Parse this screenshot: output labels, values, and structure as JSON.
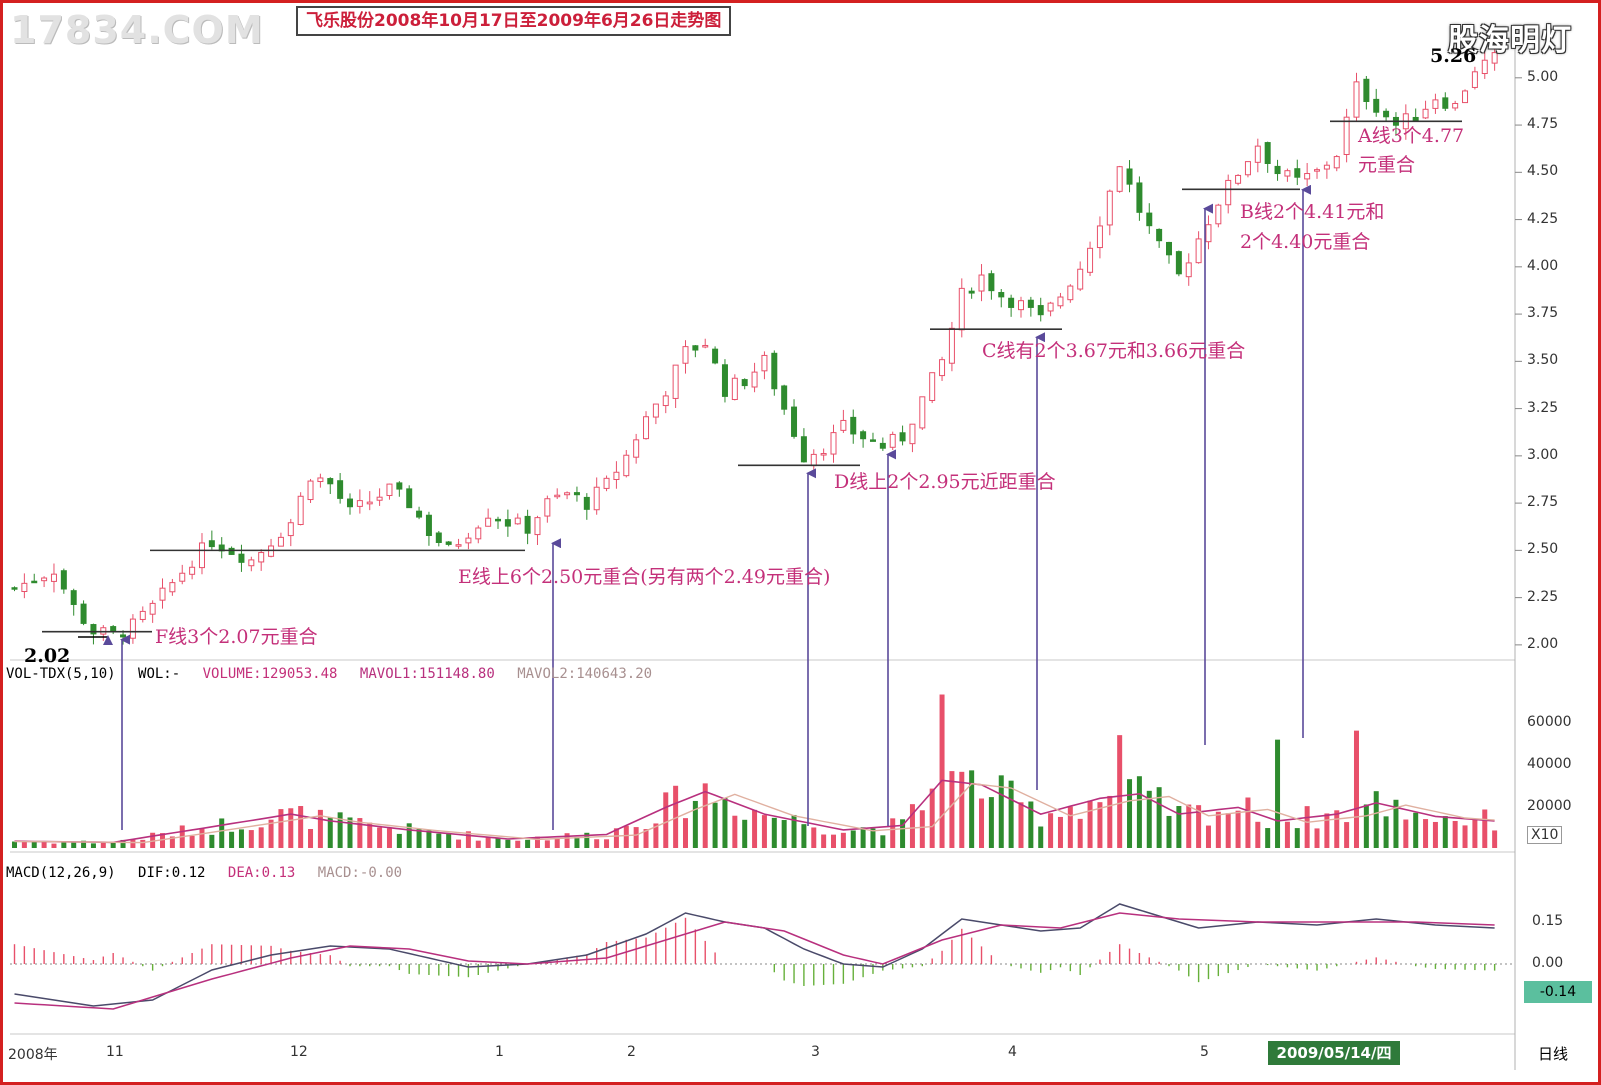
{
  "header": {
    "watermark": "17834.COM",
    "title": "飞乐股份2008年10月17日至2009年6月26日走势图",
    "logo": "股海明灯"
  },
  "price_axis": {
    "ticks": [
      "5.00",
      "4.75",
      "4.50",
      "4.25",
      "4.00",
      "3.75",
      "3.50",
      "3.25",
      "3.00",
      "2.75",
      "2.50",
      "2.25",
      "2.00"
    ]
  },
  "volume_axis": {
    "ticks": [
      "60000",
      "40000",
      "20000"
    ],
    "unit": "X10"
  },
  "macd_axis": {
    "ticks": [
      "0.15",
      "0.00"
    ],
    "current": "-0.14"
  },
  "volume_indicator": {
    "name": "VOL-TDX(5,10)",
    "sub": "WOL:-",
    "volume": "VOLUME:129053.48",
    "mavol1": "MAVOL1:151148.80",
    "mavol2": "MAVOL2:140643.20"
  },
  "macd_indicator": {
    "name": "MACD(12,26,9)",
    "dif": "DIF:0.12",
    "dea": "DEA:0.13",
    "macd": "MACD:-0.00"
  },
  "annotations": {
    "low_price": "2.02",
    "high_price": "5.26",
    "line_f": "F线3个2.07元重合",
    "line_e": "E线上6个2.50元重合(另有两个2.49元重合)",
    "line_d": "D线上2个2.95元近距重合",
    "line_c": "C线有2个3.67元和3.66元重合",
    "line_b1": "B线2个4.41元和",
    "line_b2": "2个4.40元重合",
    "line_a1": "A线3个4.77",
    "line_a2": "元重合"
  },
  "x_axis": {
    "labels": [
      "2008年",
      "11",
      "12",
      "1",
      "2",
      "3",
      "4",
      "5"
    ],
    "selected_date": "2009/05/14/四",
    "period": "日线"
  },
  "colors": {
    "up": "#e8506a",
    "down": "#2e8b2e",
    "ma1": "#b8307e",
    "ma2": "#e0b0a0",
    "frame": "#d42020",
    "annotation": "#c4307a",
    "arrow": "#5a4a9a"
  },
  "chart_data": {
    "type": "candlestick",
    "title": "飞乐股份2008年10月17日至2009年6月26日走势图",
    "price_range": [
      1.92,
      5.2
    ],
    "volume_range": [
      0,
      70000
    ],
    "macd_range": [
      -0.22,
      0.28
    ],
    "horizontal_levels": [
      {
        "name": "F",
        "price": 2.07
      },
      {
        "name": "E",
        "price": 2.5
      },
      {
        "name": "D",
        "price": 2.95
      },
      {
        "name": "C",
        "price": 3.67
      },
      {
        "name": "B",
        "price": 4.41
      },
      {
        "name": "A",
        "price": 4.77
      }
    ],
    "price_path": [
      [
        0,
        2.3
      ],
      [
        4,
        2.4
      ],
      [
        6,
        2.2
      ],
      [
        8,
        2.07
      ],
      [
        10,
        2.05
      ],
      [
        12,
        2.1
      ],
      [
        14,
        2.2
      ],
      [
        18,
        2.45
      ],
      [
        20,
        2.55
      ],
      [
        22,
        2.5
      ],
      [
        24,
        2.45
      ],
      [
        28,
        2.65
      ],
      [
        30,
        2.9
      ],
      [
        32,
        2.85
      ],
      [
        34,
        2.7
      ],
      [
        38,
        2.82
      ],
      [
        40,
        2.75
      ],
      [
        42,
        2.6
      ],
      [
        44,
        2.5
      ],
      [
        46,
        2.6
      ],
      [
        48,
        2.7
      ],
      [
        50,
        2.65
      ],
      [
        52,
        2.62
      ],
      [
        54,
        2.75
      ],
      [
        56,
        2.8
      ],
      [
        58,
        2.75
      ],
      [
        60,
        2.85
      ],
      [
        62,
        3.0
      ],
      [
        64,
        3.2
      ],
      [
        66,
        3.35
      ],
      [
        68,
        3.55
      ],
      [
        70,
        3.6
      ],
      [
        72,
        3.35
      ],
      [
        74,
        3.4
      ],
      [
        76,
        3.5
      ],
      [
        78,
        3.25
      ],
      [
        80,
        3.0
      ],
      [
        82,
        3.05
      ],
      [
        84,
        3.15
      ],
      [
        86,
        3.1
      ],
      [
        88,
        3.05
      ],
      [
        90,
        3.1
      ],
      [
        92,
        3.3
      ],
      [
        94,
        3.5
      ],
      [
        96,
        3.85
      ],
      [
        98,
        3.95
      ],
      [
        100,
        3.85
      ],
      [
        102,
        3.8
      ],
      [
        104,
        3.72
      ],
      [
        106,
        3.85
      ],
      [
        108,
        4.0
      ],
      [
        110,
        4.25
      ],
      [
        112,
        4.55
      ],
      [
        114,
        4.3
      ],
      [
        116,
        4.1
      ],
      [
        118,
        3.95
      ],
      [
        120,
        4.15
      ],
      [
        122,
        4.35
      ],
      [
        124,
        4.5
      ],
      [
        126,
        4.65
      ],
      [
        128,
        4.5
      ],
      [
        130,
        4.45
      ],
      [
        132,
        4.5
      ],
      [
        134,
        4.6
      ],
      [
        136,
        4.95
      ],
      [
        138,
        4.85
      ],
      [
        140,
        4.75
      ],
      [
        142,
        4.8
      ],
      [
        144,
        4.9
      ],
      [
        146,
        4.85
      ],
      [
        148,
        5.05
      ],
      [
        150,
        5.1
      ]
    ],
    "volume_path": [
      [
        0,
        3000
      ],
      [
        10,
        2500
      ],
      [
        18,
        8000
      ],
      [
        28,
        15000
      ],
      [
        32,
        12000
      ],
      [
        40,
        8000
      ],
      [
        50,
        4000
      ],
      [
        60,
        6000
      ],
      [
        66,
        18000
      ],
      [
        70,
        25000
      ],
      [
        76,
        15000
      ],
      [
        84,
        8000
      ],
      [
        90,
        10000
      ],
      [
        94,
        30000
      ],
      [
        98,
        28000
      ],
      [
        104,
        15000
      ],
      [
        110,
        22000
      ],
      [
        114,
        24000
      ],
      [
        118,
        15000
      ],
      [
        124,
        18000
      ],
      [
        128,
        12000
      ],
      [
        134,
        15000
      ],
      [
        138,
        20000
      ],
      [
        144,
        14000
      ],
      [
        150,
        12000
      ]
    ],
    "macd_dif_path": [
      [
        0,
        -0.1
      ],
      [
        8,
        -0.14
      ],
      [
        14,
        -0.12
      ],
      [
        20,
        -0.02
      ],
      [
        26,
        0.03
      ],
      [
        32,
        0.06
      ],
      [
        38,
        0.05
      ],
      [
        42,
        0.02
      ],
      [
        46,
        -0.01
      ],
      [
        52,
        0.0
      ],
      [
        58,
        0.03
      ],
      [
        64,
        0.1
      ],
      [
        68,
        0.17
      ],
      [
        72,
        0.14
      ],
      [
        76,
        0.12
      ],
      [
        80,
        0.05
      ],
      [
        84,
        0.0
      ],
      [
        88,
        -0.01
      ],
      [
        92,
        0.05
      ],
      [
        96,
        0.15
      ],
      [
        100,
        0.13
      ],
      [
        104,
        0.11
      ],
      [
        108,
        0.12
      ],
      [
        112,
        0.2
      ],
      [
        116,
        0.16
      ],
      [
        120,
        0.12
      ],
      [
        126,
        0.14
      ],
      [
        132,
        0.13
      ],
      [
        138,
        0.15
      ],
      [
        144,
        0.13
      ],
      [
        150,
        0.12
      ]
    ],
    "macd_dea_path": [
      [
        0,
        -0.13
      ],
      [
        10,
        -0.15
      ],
      [
        20,
        -0.05
      ],
      [
        28,
        0.02
      ],
      [
        34,
        0.06
      ],
      [
        40,
        0.05
      ],
      [
        46,
        0.01
      ],
      [
        52,
        0.0
      ],
      [
        60,
        0.02
      ],
      [
        66,
        0.08
      ],
      [
        72,
        0.14
      ],
      [
        78,
        0.11
      ],
      [
        84,
        0.03
      ],
      [
        88,
        0.0
      ],
      [
        94,
        0.08
      ],
      [
        100,
        0.13
      ],
      [
        106,
        0.12
      ],
      [
        112,
        0.17
      ],
      [
        118,
        0.15
      ],
      [
        126,
        0.14
      ],
      [
        134,
        0.14
      ],
      [
        142,
        0.14
      ],
      [
        150,
        0.13
      ]
    ]
  }
}
